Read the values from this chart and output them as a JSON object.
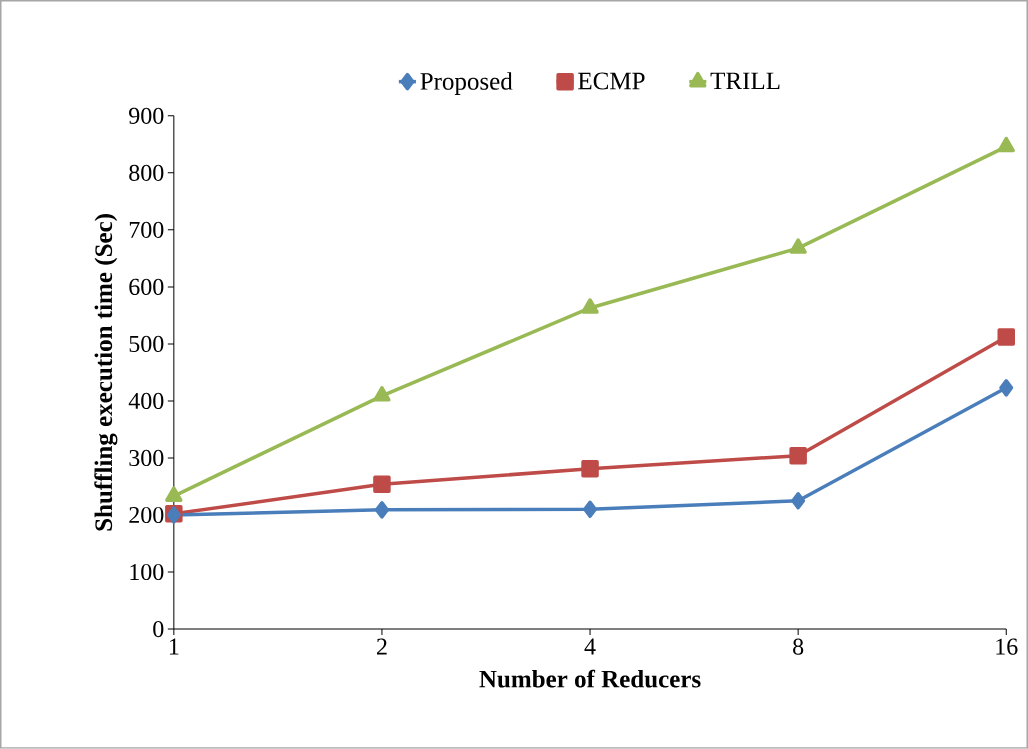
{
  "chart_data": {
    "type": "line",
    "xlabel": "Number of Reducers",
    "ylabel": "Shuffling  execution time  (Sec)",
    "categories": [
      "1",
      "2",
      "4",
      "8",
      "16"
    ],
    "series": [
      {
        "name": "Proposed",
        "color": "#4a7ebb",
        "marker": "diamond",
        "values": [
          200,
          209,
          210,
          225,
          423
        ]
      },
      {
        "name": "ECMP",
        "color": "#be4b48",
        "marker": "square",
        "values": [
          202,
          254,
          281,
          304,
          512
        ]
      },
      {
        "name": "TRILL",
        "color": "#98b954",
        "marker": "triangle",
        "values": [
          233,
          409,
          563,
          668,
          846
        ]
      }
    ],
    "ylim": [
      0,
      900
    ],
    "yticks": [
      0,
      100,
      200,
      300,
      400,
      500,
      600,
      700,
      800,
      900
    ],
    "grid": false,
    "legend": "top"
  }
}
